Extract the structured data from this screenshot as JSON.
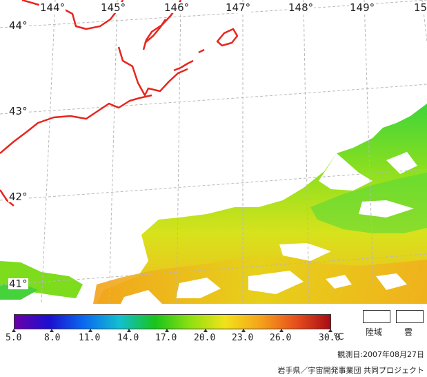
{
  "map": {
    "longitude_labels": [
      "144°",
      "145°",
      "146°",
      "147°",
      "148°",
      "149°",
      "15"
    ],
    "latitude_labels": [
      "44°",
      "43°",
      "42°",
      "41°"
    ],
    "coastline_color": "#e8251e",
    "land_cloud_color": "#ffffff"
  },
  "colorbar": {
    "ticks": [
      "5.0",
      "8.0",
      "11.0",
      "14.0",
      "17.0",
      "20.0",
      "23.0",
      "26.0",
      "30.0"
    ],
    "unit": "°C",
    "colors": [
      "#6a00a8",
      "#1b0fd0",
      "#0a6cf0",
      "#12bfd0",
      "#18c41a",
      "#8ee010",
      "#f2e21a",
      "#f5a31a",
      "#e8501c",
      "#a80c14"
    ]
  },
  "legend": {
    "land_label": "陸域",
    "cloud_label": "雲"
  },
  "observation_date": "観測日:2007年08月27日",
  "credit": "岩手県／宇宙開発事業団 共同プロジェクト"
}
